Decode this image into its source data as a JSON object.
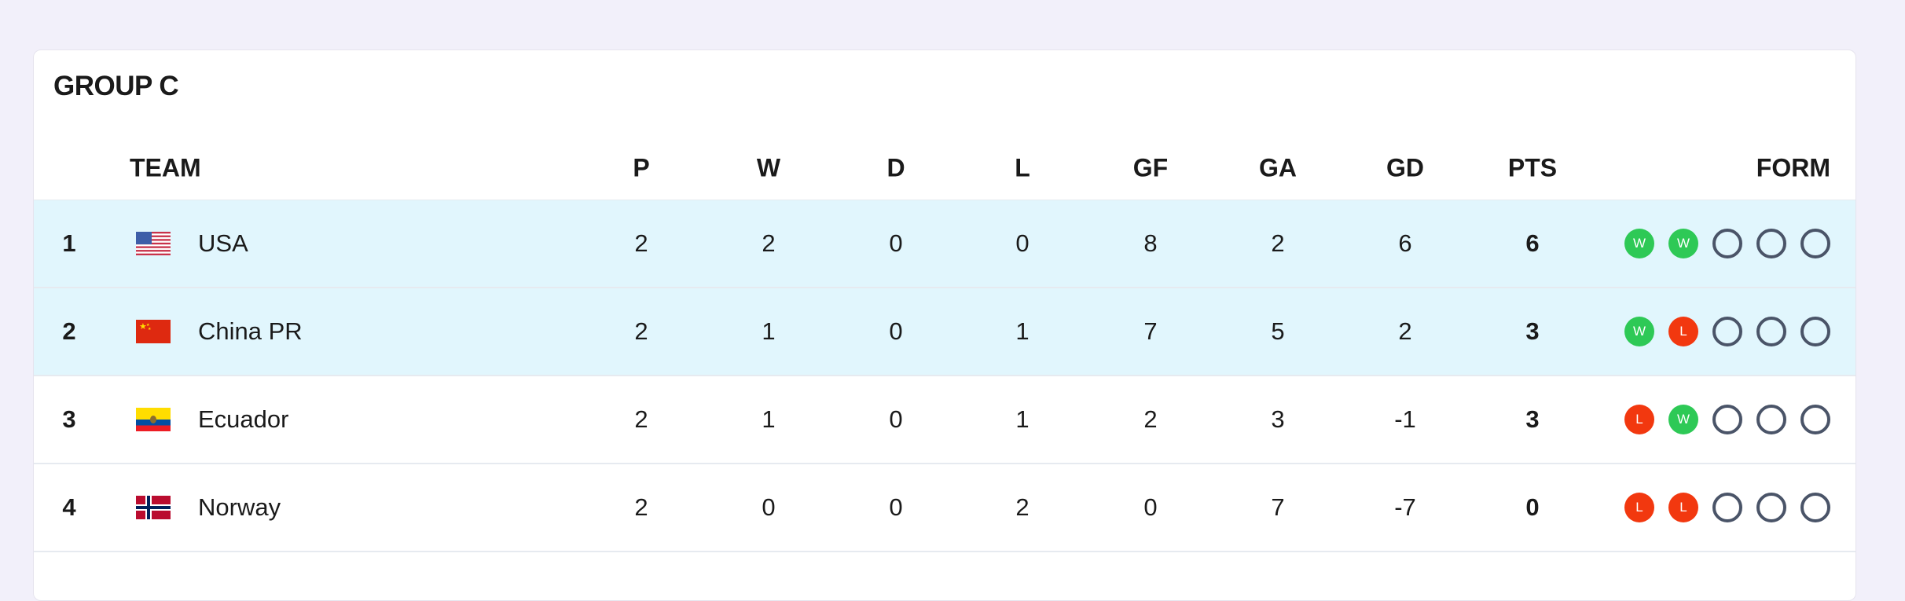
{
  "group_title": "GROUP C",
  "headers": {
    "team": "TEAM",
    "p": "P",
    "w": "W",
    "d": "D",
    "l": "L",
    "gf": "GF",
    "ga": "GA",
    "gd": "GD",
    "pts": "PTS",
    "form": "FORM"
  },
  "colors": {
    "win": "#2ec956",
    "loss": "#f2380f",
    "highlight": "#e1f6fd",
    "background": "#f2f0fa"
  },
  "rows": [
    {
      "rank": "1",
      "flag": "usa-flag-icon",
      "team": "USA",
      "p": "2",
      "w": "2",
      "d": "0",
      "l": "0",
      "gf": "8",
      "ga": "2",
      "gd": "6",
      "pts": "6",
      "form": [
        "W",
        "W",
        "",
        "",
        ""
      ],
      "highlight": true
    },
    {
      "rank": "2",
      "flag": "china-flag-icon",
      "team": "China PR",
      "p": "2",
      "w": "1",
      "d": "0",
      "l": "1",
      "gf": "7",
      "ga": "5",
      "gd": "2",
      "pts": "3",
      "form": [
        "W",
        "L",
        "",
        "",
        ""
      ],
      "highlight": true
    },
    {
      "rank": "3",
      "flag": "ecuador-flag-icon",
      "team": "Ecuador",
      "p": "2",
      "w": "1",
      "d": "0",
      "l": "1",
      "gf": "2",
      "ga": "3",
      "gd": "-1",
      "pts": "3",
      "form": [
        "L",
        "W",
        "",
        "",
        ""
      ],
      "highlight": false
    },
    {
      "rank": "4",
      "flag": "norway-flag-icon",
      "team": "Norway",
      "p": "2",
      "w": "0",
      "d": "0",
      "l": "2",
      "gf": "0",
      "ga": "7",
      "gd": "-7",
      "pts": "0",
      "form": [
        "L",
        "L",
        "",
        "",
        ""
      ],
      "highlight": false
    }
  ]
}
